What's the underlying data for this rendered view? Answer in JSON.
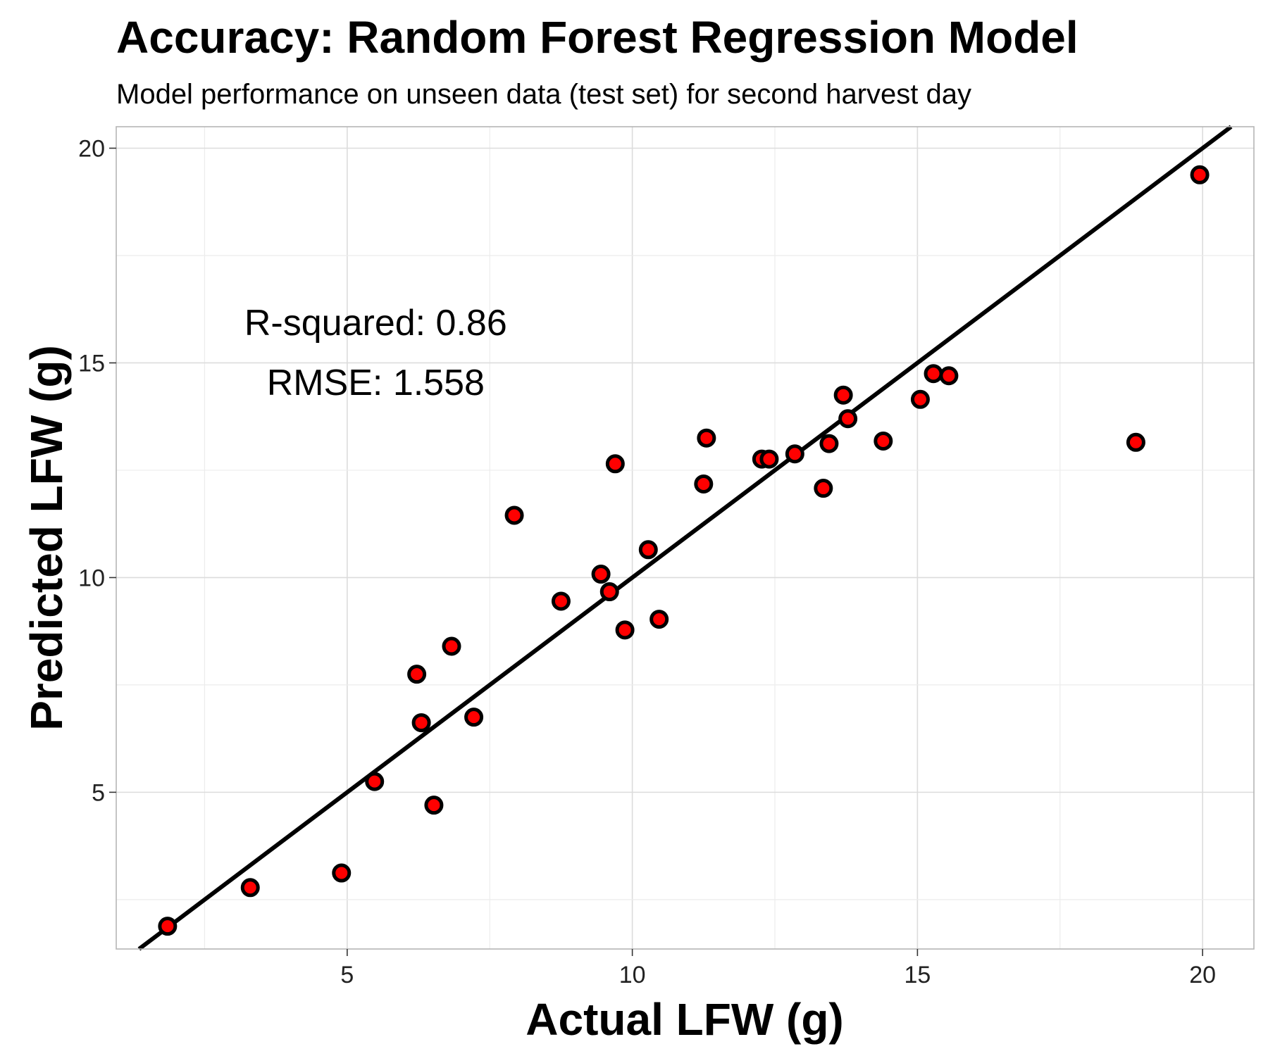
{
  "chart_data": {
    "type": "scatter",
    "title": "Accuracy: Random Forest Regression Model",
    "subtitle": "Model performance on unseen data (test  set) for second harvest day",
    "xlabel": "Actual LFW (g)",
    "ylabel": "Predicted LFW (g)",
    "xlim": [
      0.95,
      20.9
    ],
    "ylim": [
      1.35,
      20.5
    ],
    "x_ticks": [
      5,
      10,
      15,
      20
    ],
    "y_ticks": [
      5,
      10,
      15,
      20
    ],
    "x_tick_labels": [
      "5",
      "10",
      "15",
      "20"
    ],
    "y_tick_labels": [
      "5",
      "10",
      "15",
      "20"
    ],
    "grid": true,
    "reference_line": {
      "slope": 1,
      "intercept": 0,
      "color": "#000000"
    },
    "point_fill": "#ff0000",
    "point_stroke": "#000000",
    "annotations": [
      {
        "text": "R-squared:  0.86",
        "x": 5.5,
        "y": 15.65
      },
      {
        "text": "RMSE:  1.558",
        "x": 5.5,
        "y": 14.25
      }
    ],
    "points": [
      {
        "x": 1.85,
        "y": 1.88
      },
      {
        "x": 3.3,
        "y": 2.78
      },
      {
        "x": 4.9,
        "y": 3.12
      },
      {
        "x": 5.48,
        "y": 5.25
      },
      {
        "x": 6.22,
        "y": 7.75
      },
      {
        "x": 6.3,
        "y": 6.62
      },
      {
        "x": 6.52,
        "y": 4.7
      },
      {
        "x": 6.83,
        "y": 8.4
      },
      {
        "x": 7.22,
        "y": 6.75
      },
      {
        "x": 7.93,
        "y": 11.45
      },
      {
        "x": 8.75,
        "y": 9.45
      },
      {
        "x": 9.45,
        "y": 10.08
      },
      {
        "x": 9.6,
        "y": 9.67
      },
      {
        "x": 9.7,
        "y": 12.65
      },
      {
        "x": 9.87,
        "y": 8.78
      },
      {
        "x": 10.28,
        "y": 10.65
      },
      {
        "x": 10.47,
        "y": 9.03
      },
      {
        "x": 11.25,
        "y": 12.18
      },
      {
        "x": 11.3,
        "y": 13.25
      },
      {
        "x": 12.27,
        "y": 12.76
      },
      {
        "x": 12.4,
        "y": 12.76
      },
      {
        "x": 12.85,
        "y": 12.88
      },
      {
        "x": 13.35,
        "y": 12.08
      },
      {
        "x": 13.45,
        "y": 13.12
      },
      {
        "x": 13.7,
        "y": 14.25
      },
      {
        "x": 13.78,
        "y": 13.7
      },
      {
        "x": 14.4,
        "y": 13.18
      },
      {
        "x": 15.05,
        "y": 14.15
      },
      {
        "x": 15.28,
        "y": 14.75
      },
      {
        "x": 15.55,
        "y": 14.7
      },
      {
        "x": 18.83,
        "y": 13.15
      },
      {
        "x": 19.95,
        "y": 19.38
      }
    ]
  }
}
